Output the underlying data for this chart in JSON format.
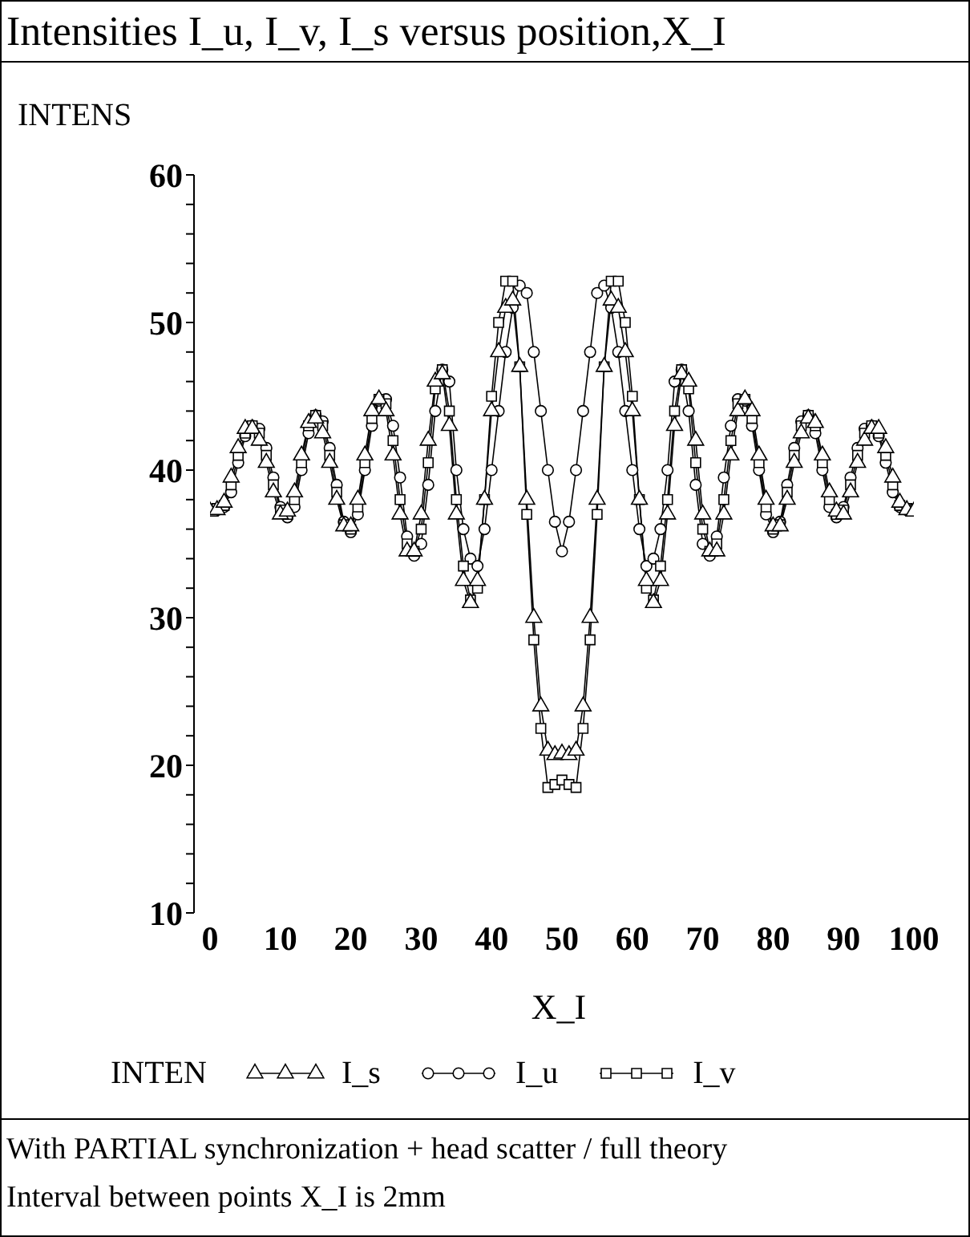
{
  "chart_data": {
    "type": "line",
    "title": "Intensities I_u, I_v, I_s versus position,X_I",
    "xlabel": "X_I",
    "ylabel": "INTENS",
    "legend_title": "INTEN",
    "legend": "bottom",
    "grid": false,
    "x": [
      0,
      1,
      2,
      3,
      4,
      5,
      6,
      7,
      8,
      9,
      10,
      11,
      12,
      13,
      14,
      15,
      16,
      17,
      18,
      19,
      20,
      21,
      22,
      23,
      24,
      25,
      26,
      27,
      28,
      29,
      30,
      31,
      32,
      33,
      34,
      35,
      36,
      37,
      38,
      39,
      40,
      41,
      42,
      43,
      44,
      45,
      46,
      47,
      48,
      49,
      50,
      51,
      52,
      53,
      54,
      55,
      56,
      57,
      58,
      59,
      60,
      61,
      62,
      63,
      64,
      65,
      66,
      67,
      68,
      69,
      70,
      71,
      72,
      73,
      74,
      75,
      76,
      77,
      78,
      79,
      80,
      81,
      82,
      83,
      84,
      85,
      86,
      87,
      88,
      89,
      90,
      91,
      92,
      93,
      94,
      95,
      96,
      97,
      98,
      99,
      100
    ],
    "xlim": [
      0,
      100
    ],
    "xticks": [
      0,
      10,
      20,
      30,
      40,
      50,
      60,
      70,
      80,
      90,
      100
    ],
    "ylim": [
      10,
      60
    ],
    "yticks": [
      10,
      {
        "value": 12,
        "label": null
      },
      {
        "value": 14,
        "label": null
      },
      {
        "value": 16,
        "label": null
      },
      {
        "value": 18,
        "label": null
      },
      20,
      {
        "value": 22,
        "label": null
      },
      {
        "value": 24,
        "label": null
      },
      {
        "value": 26,
        "label": null
      },
      {
        "value": 28,
        "label": null
      },
      30,
      {
        "value": 32,
        "label": null
      },
      {
        "value": 34,
        "label": null
      },
      {
        "value": 36,
        "label": null
      },
      {
        "value": 38,
        "label": null
      },
      40,
      {
        "value": 42,
        "label": null
      },
      {
        "value": 44,
        "label": null
      },
      {
        "value": 46,
        "label": null
      },
      {
        "value": 48,
        "label": null
      },
      50,
      {
        "value": 52,
        "label": null
      },
      {
        "value": 54,
        "label": null
      },
      {
        "value": 56,
        "label": null
      },
      {
        "value": 58,
        "label": null
      },
      60
    ],
    "series": [
      {
        "name": "I_s",
        "color": "#000000",
        "marker": "triangle",
        "values": [
          37.2,
          37.3,
          37.8,
          39.5,
          41.5,
          42.8,
          42.8,
          42,
          40.5,
          38.5,
          37,
          37.2,
          38.5,
          41,
          43.2,
          43.5,
          42.5,
          40.5,
          38,
          36.2,
          36.2,
          38,
          41,
          44,
          44.8,
          44,
          41,
          37,
          34.5,
          34.5,
          37,
          42,
          46,
          46.5,
          43,
          37,
          32.5,
          31,
          32.5,
          38,
          44,
          48,
          51,
          51.5,
          47,
          38,
          30,
          24,
          21,
          20.7,
          20.8,
          20.7,
          21,
          24,
          30,
          38,
          47,
          51.5,
          51,
          48,
          44,
          38,
          32.5,
          31,
          32.5,
          37,
          43,
          46.5,
          46,
          42,
          37,
          34.5,
          34.5,
          37,
          41,
          44,
          44.8,
          44,
          41,
          38,
          36.2,
          36.2,
          38,
          40.5,
          42.5,
          43.5,
          43.2,
          41,
          38.5,
          37.2,
          37,
          38.5,
          40.5,
          42,
          42.8,
          42.8,
          41.5,
          39.5,
          37.8,
          37.3,
          37.2
        ]
      },
      {
        "name": "I_u",
        "color": "#000000",
        "marker": "circle",
        "values": [
          37.3,
          37.3,
          37.5,
          38.5,
          40.5,
          42.3,
          43,
          42.8,
          41.5,
          39.5,
          37.5,
          36.8,
          37.5,
          40,
          42.5,
          43.7,
          43.3,
          41.5,
          39,
          36.5,
          35.8,
          37,
          40,
          43,
          44.7,
          44.8,
          43,
          39.5,
          35.5,
          34.2,
          35,
          39,
          44,
          46.8,
          46,
          40,
          36,
          34,
          33.5,
          36,
          40,
          44,
          48,
          51,
          52.5,
          52,
          48,
          44,
          40,
          36.5,
          34.5,
          36.5,
          40,
          44,
          48,
          52,
          52.5,
          51,
          48,
          44,
          40,
          36,
          33.5,
          34,
          36,
          40,
          46,
          46.8,
          44,
          39,
          35,
          34.2,
          35.5,
          39.5,
          43,
          44.8,
          44.7,
          43,
          40,
          37,
          35.8,
          36.5,
          39,
          41.5,
          43.3,
          43.7,
          42.5,
          40,
          37.5,
          36.8,
          37.5,
          39.5,
          41.5,
          42.8,
          43,
          42.3,
          40.5,
          38.5,
          37.5,
          37.3,
          37.3
        ]
      },
      {
        "name": "I_v",
        "color": "#000000",
        "marker": "square",
        "values": [
          37.3,
          37.4,
          37.6,
          39,
          41,
          42.5,
          43,
          42.5,
          41,
          39,
          37.3,
          37,
          38,
          40.5,
          43,
          43.7,
          43,
          41,
          38.5,
          36.3,
          36,
          37.5,
          40.5,
          43.5,
          44.8,
          44.5,
          42,
          38,
          35,
          34.5,
          36,
          40.5,
          45.5,
          46.8,
          44,
          38,
          33.5,
          31.2,
          32,
          38,
          45,
          50,
          52.8,
          52.8,
          47,
          37,
          28.5,
          22.5,
          18.5,
          18.7,
          19,
          18.7,
          18.5,
          22.5,
          28.5,
          37,
          47,
          52.8,
          52.8,
          50,
          45,
          38,
          32,
          31.2,
          33.5,
          38,
          44,
          46.8,
          45.5,
          40.5,
          36,
          34.5,
          35,
          38,
          42,
          44.5,
          44.8,
          43.5,
          40.5,
          37.5,
          36,
          36.3,
          38.5,
          41,
          43,
          43.7,
          43,
          40.5,
          38,
          37,
          37.3,
          39,
          41,
          42.5,
          43,
          42.5,
          41,
          39,
          37.6,
          37.4,
          37.3
        ]
      }
    ],
    "annotations": [
      "With PARTIAL synchronization + head scatter / full theory",
      "Interval between points X_I is 2mm"
    ]
  }
}
